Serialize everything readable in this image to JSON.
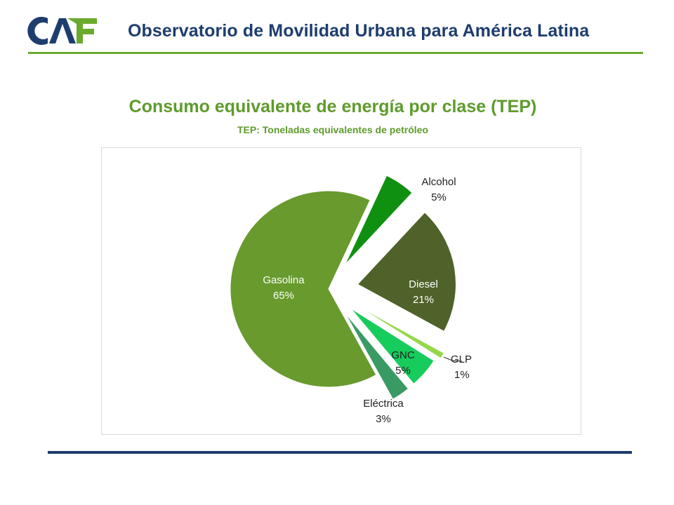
{
  "header": {
    "logo_text": "CAF",
    "title": "Observatorio de Movilidad Urbana para América Latina"
  },
  "chart_data": {
    "type": "pie",
    "title": "Consumo equivalente de energía por clase (TEP)",
    "subtitle": "TEP: Toneladas equivalentes de petróleo",
    "slices": [
      {
        "label": "Alcohol",
        "value": 5,
        "display": "5%",
        "color": "#109010"
      },
      {
        "label": "Diesel",
        "value": 21,
        "display": "21%",
        "color": "#4e6229"
      },
      {
        "label": "GLP",
        "value": 1,
        "display": "1%",
        "color": "#95d84a"
      },
      {
        "label": "GNC",
        "value": 5,
        "display": "5%",
        "color": "#16cc5c"
      },
      {
        "label": "Eléctrica",
        "value": 3,
        "display": "3%",
        "color": "#3a9a64"
      },
      {
        "label": "Gasolina",
        "value": 65,
        "display": "65%",
        "color": "#689a2d"
      }
    ]
  }
}
